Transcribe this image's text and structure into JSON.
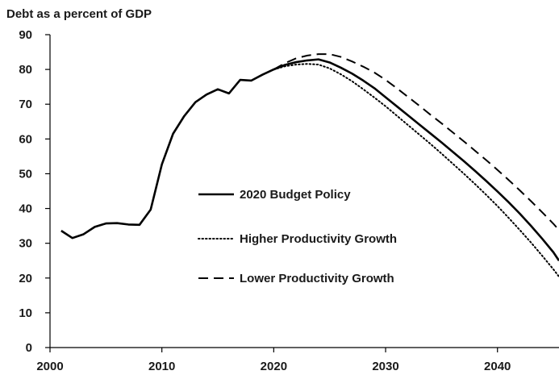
{
  "chart_data": {
    "type": "line",
    "title": "Debt as a percent of GDP",
    "xlabel": "",
    "ylabel": "",
    "xlim": [
      2000,
      2045.5
    ],
    "ylim": [
      0,
      90
    ],
    "x_ticks": [
      2000,
      2010,
      2020,
      2030,
      2040
    ],
    "y_ticks": [
      0,
      10,
      20,
      30,
      40,
      50,
      60,
      70,
      80,
      90
    ],
    "grid": false,
    "legend_position": "center",
    "series": [
      {
        "name": "2020 Budget Policy",
        "style": "solid",
        "color": "#000000",
        "x": [
          2001,
          2002,
          2003,
          2004,
          2005,
          2006,
          2007,
          2008,
          2009,
          2010,
          2011,
          2012,
          2013,
          2014,
          2015,
          2016,
          2017,
          2018,
          2019,
          2020,
          2021,
          2022,
          2023,
          2024,
          2025,
          2026,
          2027,
          2028,
          2029,
          2030,
          2031,
          2032,
          2033,
          2034,
          2035,
          2036,
          2037,
          2038,
          2039,
          2040,
          2041,
          2042,
          2043,
          2044,
          2045,
          2045.5
        ],
        "values": [
          33.6,
          31.5,
          32.6,
          34.7,
          35.7,
          35.8,
          35.4,
          35.3,
          39.7,
          52.7,
          61.5,
          66.6,
          70.6,
          72.8,
          74.3,
          73.1,
          77.0,
          76.8,
          78.5,
          80.0,
          81.3,
          82.1,
          82.6,
          82.9,
          82.0,
          80.5,
          78.8,
          76.8,
          74.6,
          72.0,
          69.4,
          66.8,
          64.2,
          61.6,
          59.0,
          56.3,
          53.6,
          50.8,
          47.9,
          44.9,
          41.8,
          38.5,
          35.0,
          31.3,
          27.4,
          25.0
        ]
      },
      {
        "name": "Higher Productivity Growth",
        "style": "dotted",
        "color": "#000000",
        "x": [
          2020,
          2021,
          2022,
          2023,
          2024,
          2025,
          2026,
          2027,
          2028,
          2029,
          2030,
          2031,
          2032,
          2033,
          2034,
          2035,
          2036,
          2037,
          2038,
          2039,
          2040,
          2041,
          2042,
          2043,
          2044,
          2045,
          2045.5
        ],
        "values": [
          80.0,
          80.9,
          81.4,
          81.6,
          81.4,
          80.3,
          78.6,
          76.6,
          74.3,
          71.9,
          69.4,
          66.7,
          64.0,
          61.3,
          58.6,
          55.8,
          52.9,
          50.0,
          47.0,
          43.9,
          40.7,
          37.3,
          33.8,
          30.2,
          26.4,
          22.5,
          20.4
        ]
      },
      {
        "name": "Lower Productivity Growth",
        "style": "dashed",
        "color": "#000000",
        "x": [
          2020,
          2021,
          2022,
          2023,
          2024,
          2025,
          2026,
          2027,
          2028,
          2029,
          2030,
          2031,
          2032,
          2033,
          2034,
          2035,
          2036,
          2037,
          2038,
          2039,
          2040,
          2041,
          2042,
          2043,
          2044,
          2045,
          2045.5
        ],
        "values": [
          80.0,
          81.8,
          83.2,
          84.0,
          84.4,
          84.4,
          83.6,
          82.3,
          80.8,
          79.1,
          77.0,
          74.6,
          72.1,
          69.6,
          67.0,
          64.5,
          61.9,
          59.3,
          56.6,
          53.9,
          51.1,
          48.2,
          45.2,
          42.1,
          38.9,
          35.6,
          33.8
        ]
      }
    ]
  }
}
